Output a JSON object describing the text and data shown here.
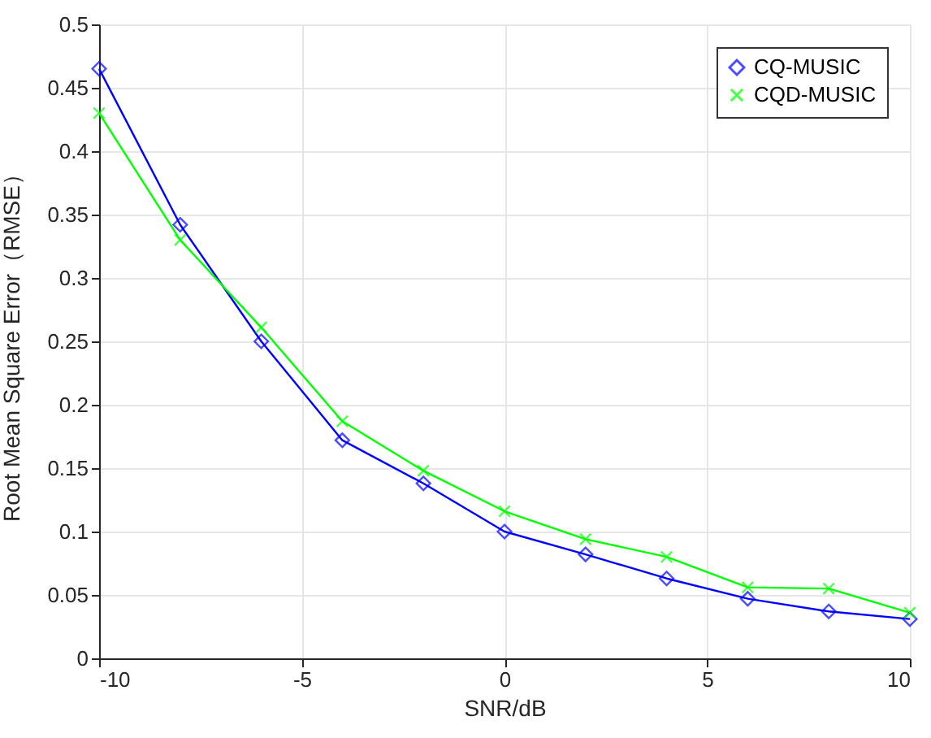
{
  "chart_data": {
    "type": "line",
    "xlabel": "SNR/dB",
    "ylabel": "Root Mean Square Error（RMSE）",
    "x": [
      -10,
      -8,
      -6,
      -4,
      -2,
      0,
      2,
      4,
      6,
      8,
      10
    ],
    "series": [
      {
        "name": "CQ-MUSIC",
        "color": "#0000ff",
        "marker": "diamond",
        "values": [
          0.465,
          0.342,
          0.25,
          0.172,
          0.138,
          0.1,
          0.082,
          0.063,
          0.047,
          0.037,
          0.031
        ]
      },
      {
        "name": "CQD-MUSIC",
        "color": "#00ff00",
        "marker": "cross",
        "values": [
          0.43,
          0.33,
          0.261,
          0.187,
          0.148,
          0.116,
          0.094,
          0.08,
          0.056,
          0.055,
          0.036
        ]
      }
    ],
    "xlim": [
      -10,
      10
    ],
    "xticks": [
      -10,
      -5,
      0,
      5,
      10
    ],
    "ylim": [
      0,
      0.5
    ],
    "yticks": [
      0,
      0.05,
      0.1,
      0.15,
      0.2,
      0.25,
      0.3,
      0.35,
      0.4,
      0.45,
      0.5
    ],
    "grid": true,
    "legend": "top right",
    "line_style": "solid"
  }
}
